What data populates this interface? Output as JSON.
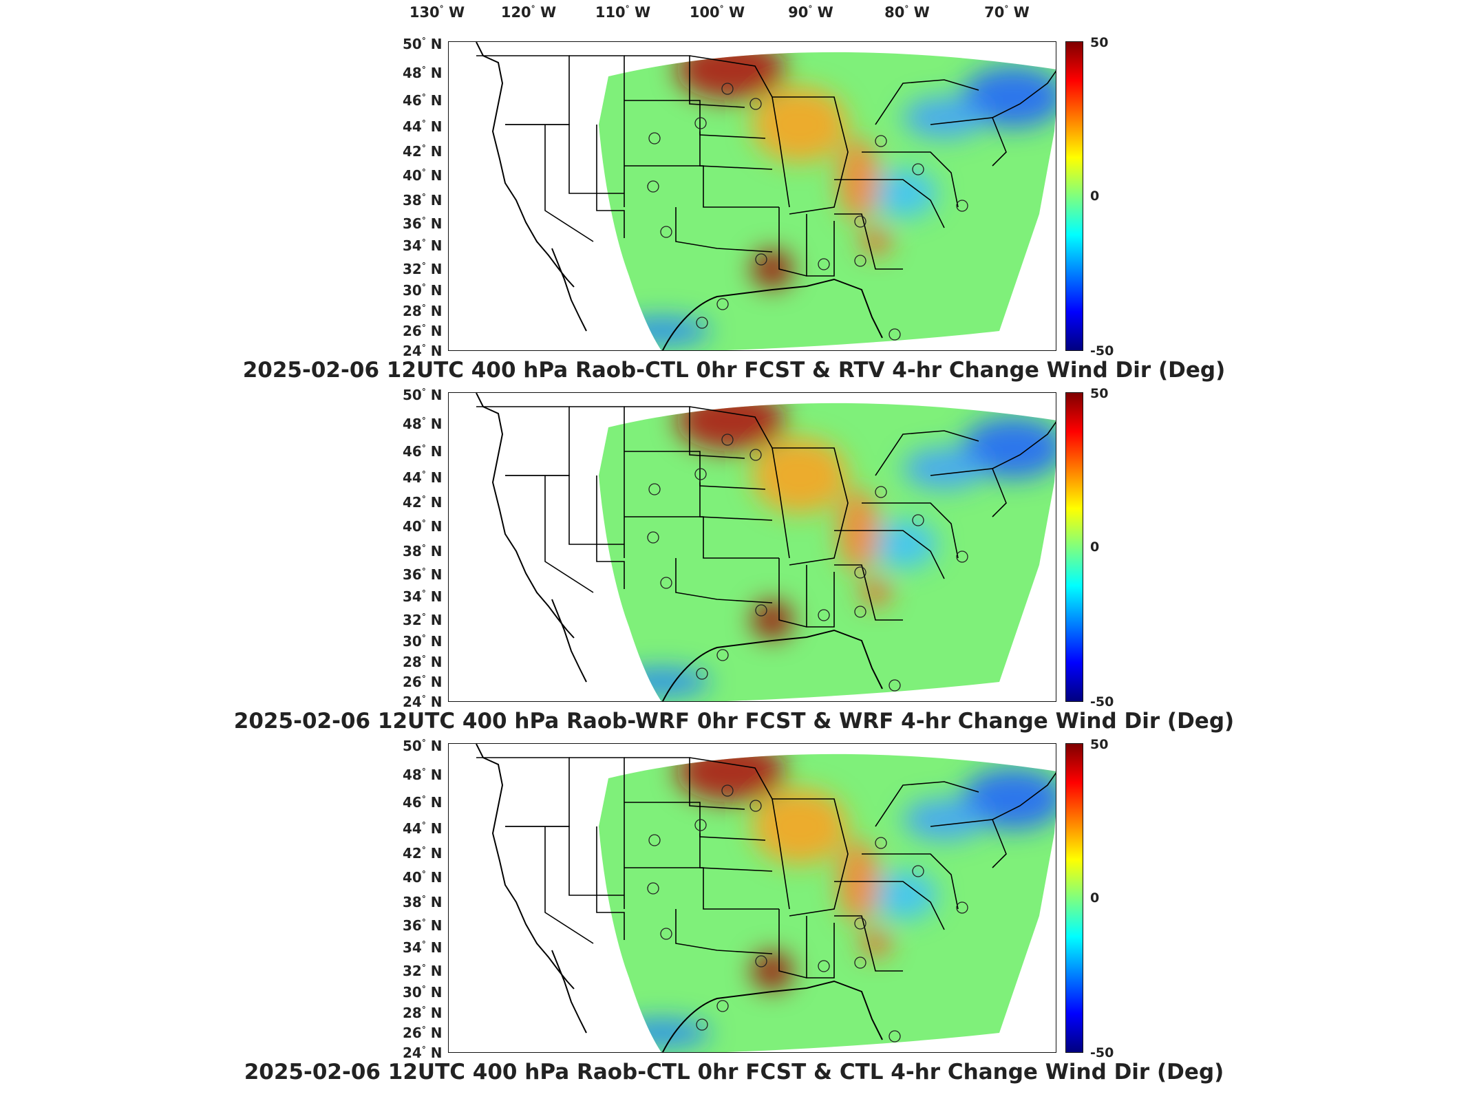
{
  "lon_labels": [
    "130",
    "120",
    "110",
    "100",
    "90",
    "80",
    "70"
  ],
  "lon_suffix": "W",
  "lat_labels": [
    "50",
    "48",
    "46",
    "44",
    "42",
    "40",
    "38",
    "36",
    "34",
    "32",
    "30",
    "28",
    "26",
    "24"
  ],
  "lat_suffix": "N",
  "degree_symbol": "°",
  "colorbar": {
    "max": "50",
    "mid": "0",
    "min": "-50",
    "colors": [
      "#00007f",
      "#0000ff",
      "#007fff",
      "#00ffff",
      "#7fff7f",
      "#ffff00",
      "#ff7f00",
      "#ff0000",
      "#7f0000"
    ]
  },
  "panels": [
    {
      "title": "2025-02-06 12UTC 400 hPa Raob-CTL 0hr FCST & RTV 4-hr Change Wind Dir (Deg)"
    },
    {
      "title": "2025-02-06 12UTC 400 hPa Raob-WRF 0hr FCST & WRF 4-hr Change Wind Dir (Deg)"
    },
    {
      "title": "2025-02-06 12UTC 400 hPa Raob-CTL 0hr FCST & CTL 4-hr Change Wind Dir (Deg)"
    }
  ]
}
